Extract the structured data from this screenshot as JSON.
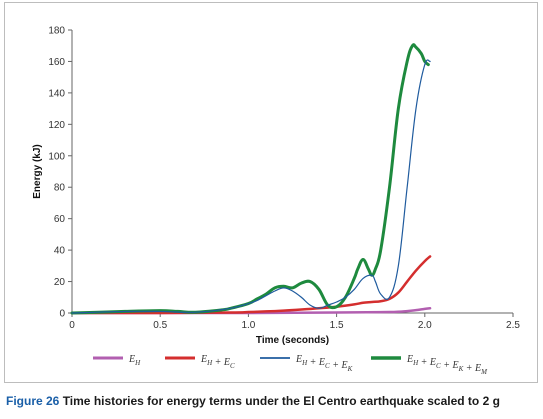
{
  "chart_data": {
    "type": "line",
    "xlabel": "Time (seconds)",
    "ylabel": "Energy (kJ)",
    "xlim": [
      0,
      2.5
    ],
    "ylim": [
      0,
      180
    ],
    "xticks": [
      0,
      0.5,
      1.0,
      1.5,
      2.0,
      2.5
    ],
    "xtick_labels": [
      "0",
      "0.5",
      "1.0",
      "1.5",
      "2.0",
      "2.5"
    ],
    "yticks": [
      0,
      20,
      40,
      60,
      80,
      100,
      120,
      140,
      160,
      180
    ],
    "ytick_labels": [
      "0",
      "20",
      "40",
      "60",
      "80",
      "100",
      "120",
      "140",
      "160",
      "180"
    ],
    "grid": false,
    "legend_position": "bottom",
    "series": [
      {
        "name": "E_H",
        "legend_parts": [
          [
            "E",
            ""
          ],
          [
            "H",
            "sub"
          ]
        ],
        "color": "#b25fb0",
        "width": 2.5,
        "x": [
          0,
          0.5,
          1.0,
          1.5,
          1.8,
          1.9,
          1.95,
          2.0,
          2.03
        ],
        "y": [
          0,
          0,
          0,
          0.3,
          0.6,
          1.2,
          1.8,
          2.6,
          3.0
        ]
      },
      {
        "name": "E_H + E_C",
        "legend_parts": [
          [
            "E",
            ""
          ],
          [
            "H",
            "sub"
          ],
          [
            " + E",
            ""
          ],
          [
            "C",
            "sub"
          ]
        ],
        "color": "#d42e2e",
        "width": 2.5,
        "x": [
          0,
          0.5,
          0.9,
          1.0,
          1.1,
          1.2,
          1.3,
          1.4,
          1.5,
          1.6,
          1.65,
          1.7,
          1.75,
          1.8,
          1.85,
          1.9,
          1.95,
          2.0,
          2.03
        ],
        "y": [
          0,
          0,
          0.3,
          0.6,
          1.0,
          1.5,
          2.2,
          3.0,
          4.0,
          5.5,
          6.5,
          7.0,
          7.5,
          9.0,
          13,
          20,
          27,
          33,
          36
        ]
      },
      {
        "name": "E_H + E_C + E_K",
        "legend_parts": [
          [
            "E",
            ""
          ],
          [
            "H",
            "sub"
          ],
          [
            " + E",
            ""
          ],
          [
            "C",
            "sub"
          ],
          [
            " + E",
            ""
          ],
          [
            "K",
            "sub"
          ]
        ],
        "color": "#1f5b9e",
        "width": 1.2,
        "x": [
          0,
          0.3,
          0.5,
          0.7,
          0.9,
          1.0,
          1.05,
          1.1,
          1.15,
          1.2,
          1.25,
          1.3,
          1.35,
          1.4,
          1.45,
          1.5,
          1.55,
          1.6,
          1.65,
          1.7,
          1.72,
          1.75,
          1.8,
          1.85,
          1.9,
          1.95,
          2.0,
          2.03
        ],
        "y": [
          0,
          1,
          1,
          0.5,
          3,
          6,
          8,
          11,
          14,
          16,
          14,
          10,
          5,
          3,
          5,
          7,
          10,
          15,
          22,
          24,
          20,
          12,
          10,
          30,
          80,
          130,
          158,
          160
        ]
      },
      {
        "name": "E_H + E_C + E_K + E_M",
        "legend_parts": [
          [
            "E",
            ""
          ],
          [
            "H",
            "sub"
          ],
          [
            " + E",
            ""
          ],
          [
            "C",
            "sub"
          ],
          [
            " + E",
            ""
          ],
          [
            "K",
            "sub"
          ],
          [
            " + E",
            ""
          ],
          [
            "M",
            "sub"
          ]
        ],
        "color": "#1e8a3e",
        "width": 3,
        "x": [
          0,
          0.3,
          0.5,
          0.6,
          0.7,
          0.85,
          0.9,
          1.0,
          1.05,
          1.1,
          1.15,
          1.2,
          1.25,
          1.3,
          1.35,
          1.4,
          1.45,
          1.5,
          1.55,
          1.6,
          1.62,
          1.65,
          1.68,
          1.7,
          1.72,
          1.75,
          1.8,
          1.85,
          1.9,
          1.93,
          1.95,
          1.98,
          2.0,
          2.02
        ],
        "y": [
          0,
          1,
          1.5,
          1,
          0.5,
          2,
          3,
          6,
          9,
          12,
          16,
          17,
          16,
          19,
          20,
          15,
          5,
          4,
          10,
          22,
          28,
          34,
          28,
          24,
          28,
          40,
          80,
          130,
          160,
          170,
          169,
          165,
          160,
          158
        ]
      }
    ]
  },
  "caption": {
    "label": "Figure 26",
    "text": " Time histories for energy terms under the El Centro earthquake scaled to 2 g"
  }
}
